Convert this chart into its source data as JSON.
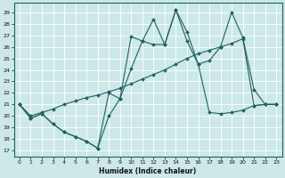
{
  "xlabel": "Humidex (Indice chaleur)",
  "bg_color": "#cce8e8",
  "line_color": "#206060",
  "grid_color": "#ffffff",
  "x_ticks": [
    0,
    1,
    2,
    3,
    4,
    5,
    6,
    7,
    8,
    9,
    10,
    11,
    12,
    13,
    14,
    15,
    16,
    17,
    18,
    19,
    20,
    21,
    22,
    23
  ],
  "y_ticks": [
    17,
    18,
    19,
    20,
    21,
    22,
    23,
    24,
    25,
    26,
    27,
    28,
    29
  ],
  "xlim": [
    -0.5,
    23.5
  ],
  "ylim": [
    16.5,
    29.8
  ],
  "line1_x": [
    0,
    1,
    2,
    3,
    4,
    5,
    6,
    7,
    8,
    9,
    10,
    11,
    12,
    13,
    14,
    15,
    16,
    17,
    18,
    19,
    20,
    21,
    22,
    23
  ],
  "line1_y": [
    21.0,
    19.8,
    20.2,
    19.3,
    18.6,
    18.2,
    17.8,
    17.2,
    20.0,
    21.5,
    24.1,
    26.5,
    26.2,
    26.2,
    29.2,
    26.5,
    24.5,
    20.3,
    20.2,
    20.3,
    20.5,
    20.9,
    21.0,
    21.0
  ],
  "line2_x": [
    0,
    1,
    2,
    3,
    4,
    5,
    6,
    7,
    8,
    9,
    10,
    11,
    12,
    13,
    14,
    15,
    16,
    17,
    18,
    19,
    20,
    21,
    22,
    23
  ],
  "line2_y": [
    21.0,
    19.8,
    20.2,
    19.3,
    18.6,
    18.2,
    17.8,
    17.2,
    22.0,
    21.5,
    26.9,
    26.5,
    28.4,
    26.2,
    29.2,
    27.3,
    24.5,
    24.8,
    26.0,
    29.0,
    26.8,
    22.3,
    21.0,
    21.0
  ],
  "line3_x": [
    0,
    1,
    2,
    3,
    4,
    5,
    6,
    7,
    8,
    9,
    10,
    11,
    12,
    13,
    14,
    15,
    16,
    17,
    18,
    19,
    20,
    21,
    22,
    23
  ],
  "line3_y": [
    21.0,
    20.0,
    20.3,
    20.6,
    21.0,
    21.3,
    21.6,
    21.8,
    22.1,
    22.4,
    22.8,
    23.2,
    23.6,
    24.0,
    24.5,
    25.0,
    25.4,
    25.7,
    26.0,
    26.3,
    26.7,
    20.9,
    21.0,
    21.0
  ]
}
